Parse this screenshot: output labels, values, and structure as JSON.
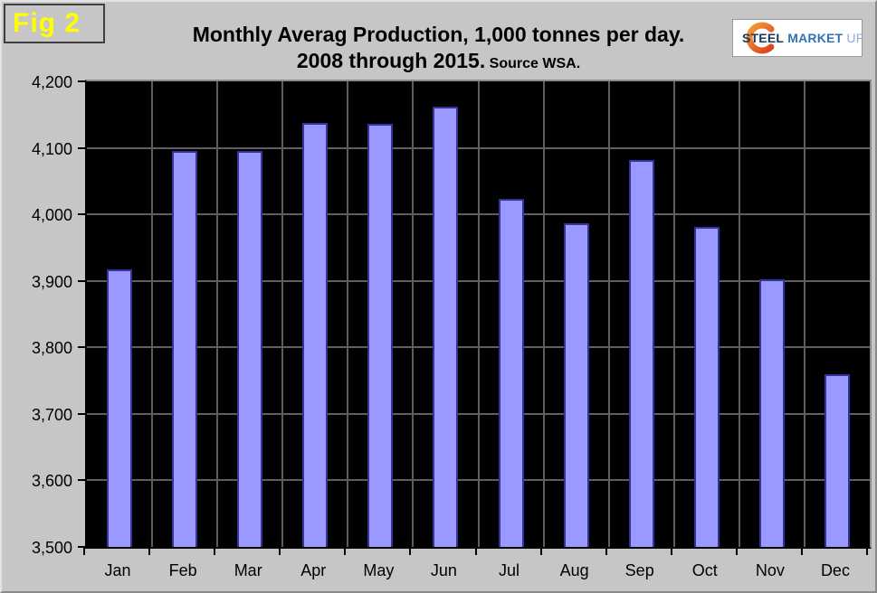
{
  "page": {
    "fig_label": "Fig 2",
    "title_line1": "Monthly Averag Production, 1,000 tonnes per day.",
    "title_line2": "2008 through 2015.",
    "title_source": "Source WSA.",
    "logo": {
      "word1": "STEEL",
      "word2": "MARKET",
      "word3": "UPDATE"
    },
    "colors": {
      "background": "#C6C6C6",
      "fig_label_text": "#FFFF00",
      "logo_navy": "#17375E",
      "logo_blue": "#2E74B5",
      "logo_light_blue": "#8EAADB",
      "logo_orange": "#E8590C"
    }
  },
  "chart_data": {
    "type": "bar",
    "title": "Monthly Averag Production, 1,000 tonnes per day. 2008 through 2015.",
    "source": "Source WSA.",
    "categories": [
      "Jan",
      "Feb",
      "Mar",
      "Apr",
      "May",
      "Jun",
      "Jul",
      "Aug",
      "Sep",
      "Oct",
      "Nov",
      "Dec"
    ],
    "values": [
      3917,
      4096,
      4095,
      4138,
      4136,
      4162,
      4023,
      3986,
      4082,
      3981,
      3902,
      3759
    ],
    "xlabel": "",
    "ylabel": "",
    "ylim": [
      3500,
      4200
    ],
    "ytick_step": 100,
    "ytick_labels": [
      "3,500",
      "3,600",
      "3,700",
      "3,800",
      "3,900",
      "4,000",
      "4,100",
      "4,200"
    ],
    "grid": true,
    "legend": "none",
    "plot_bg": "#000000",
    "grid_color": "#5F5F5F",
    "bar_fill": "#9999FF",
    "bar_border": "#333399"
  }
}
